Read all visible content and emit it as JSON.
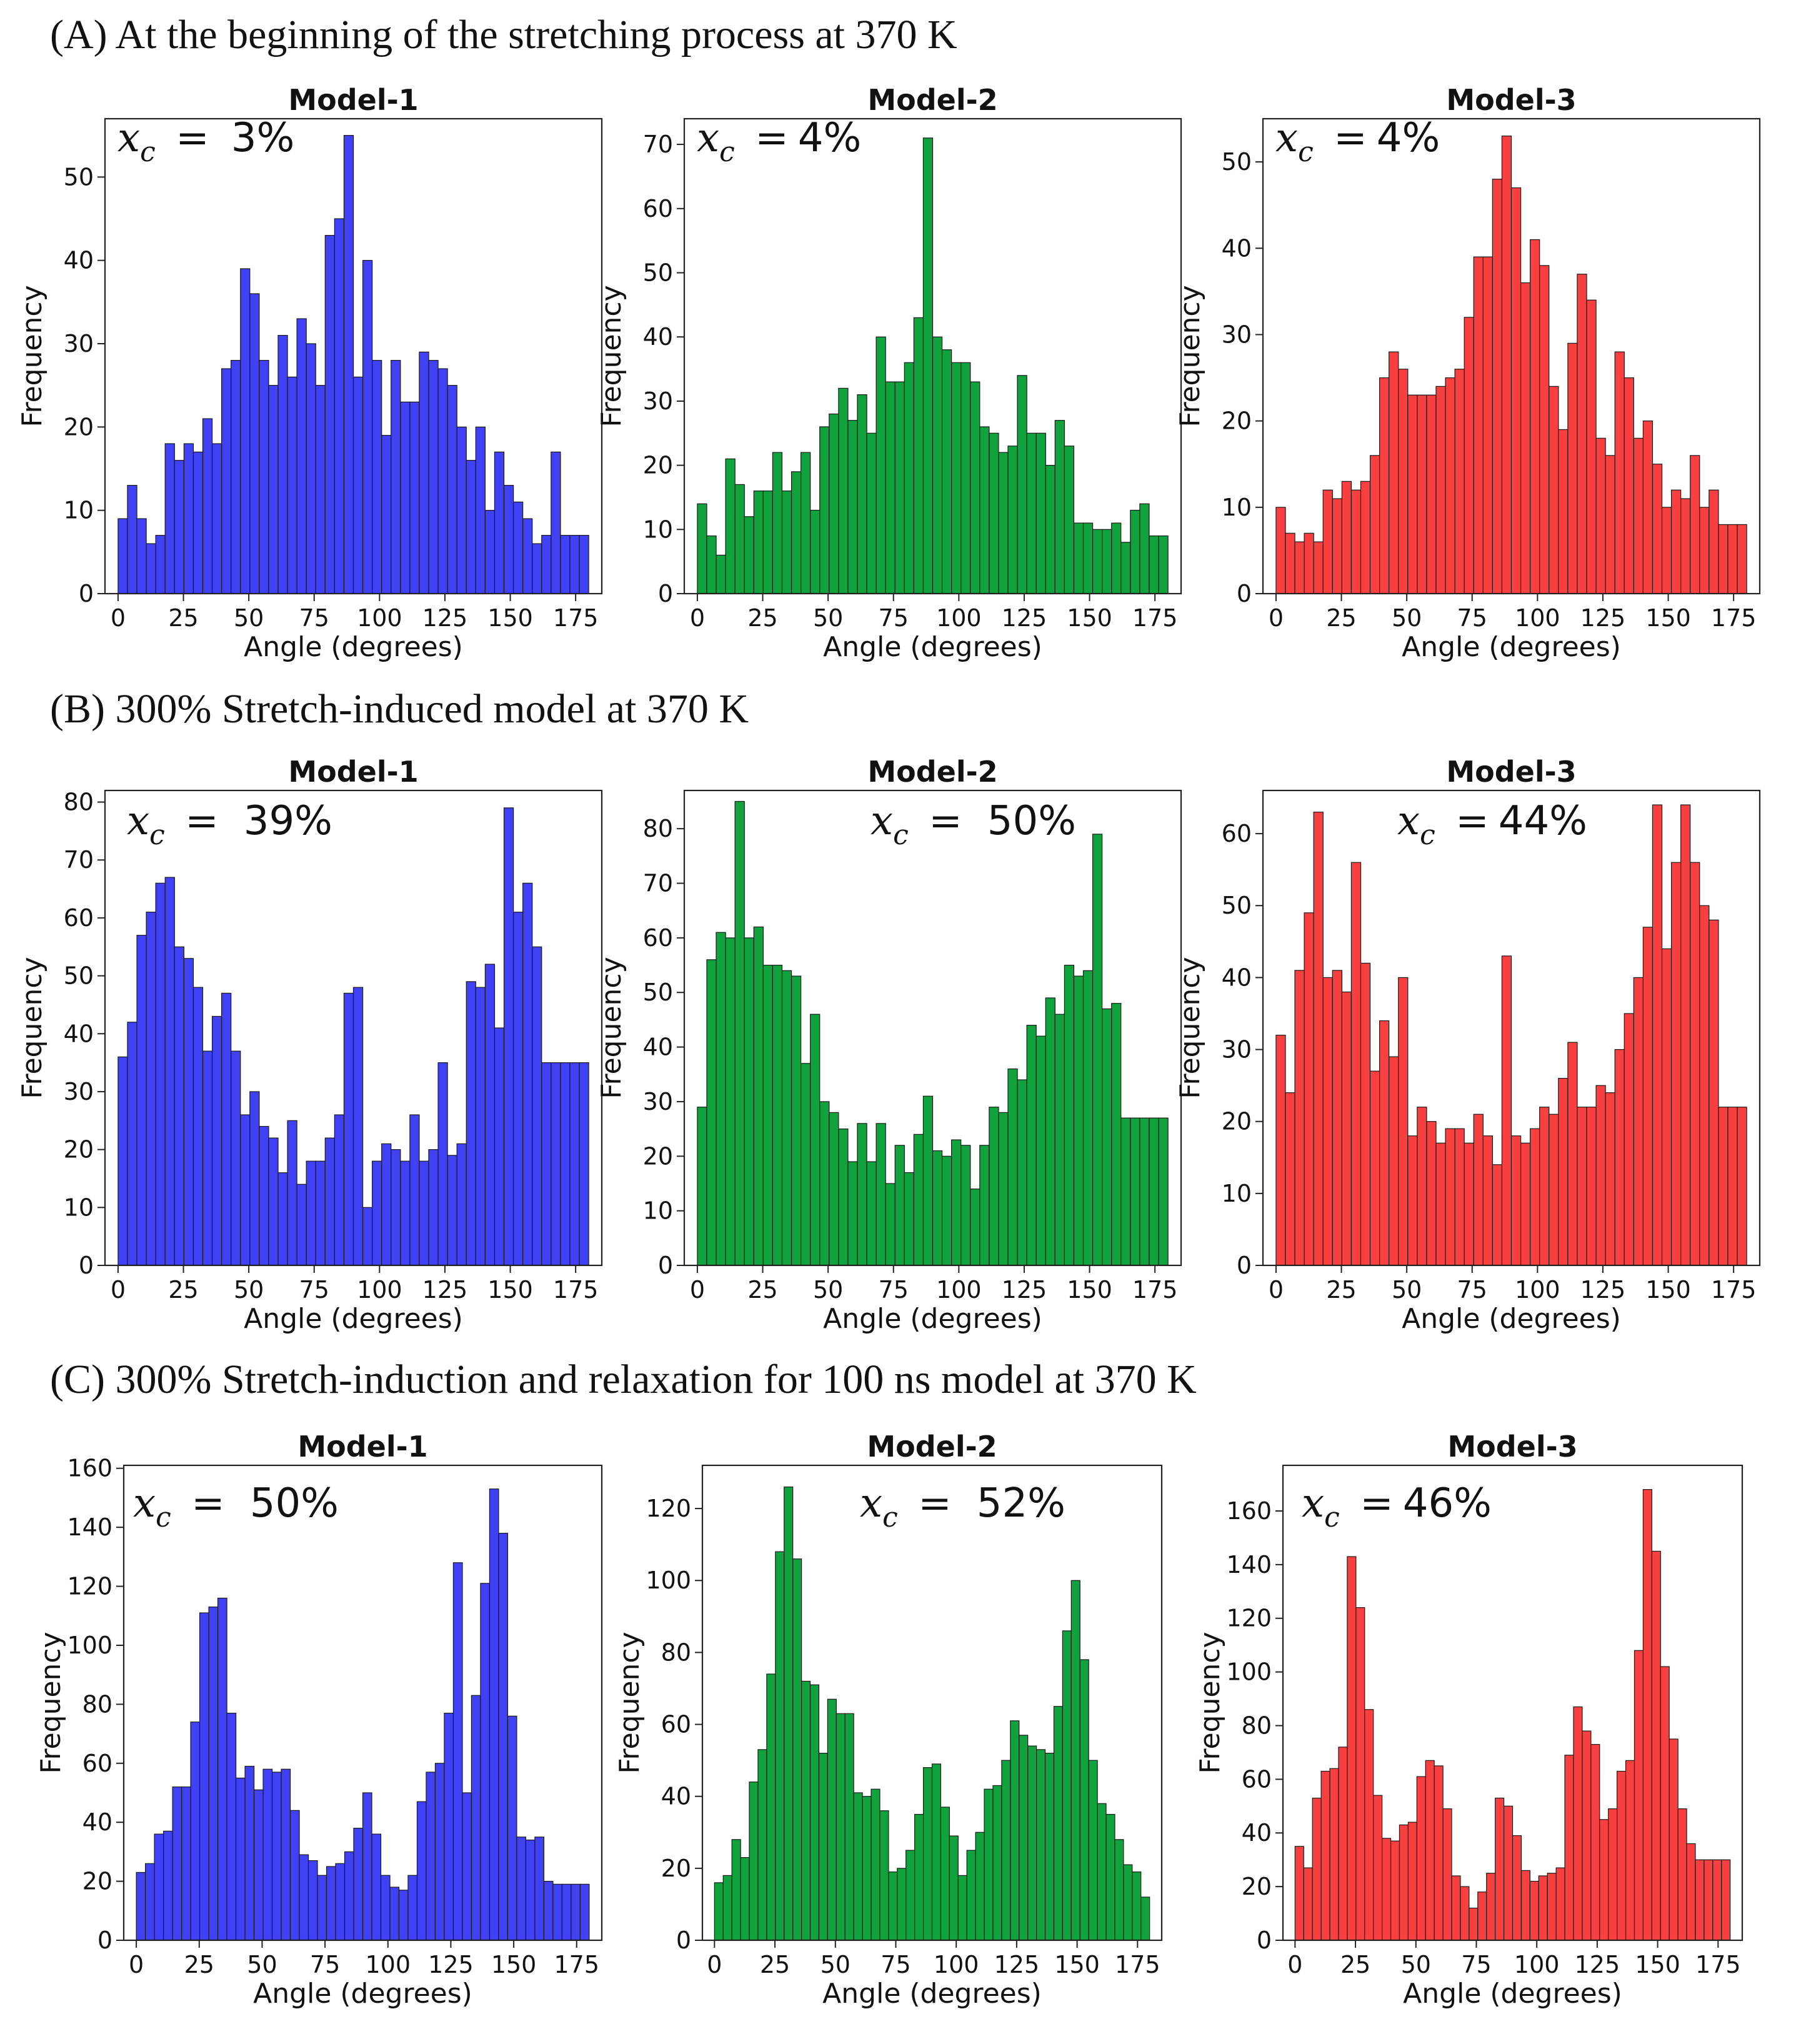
{
  "sections": [
    {
      "label": "(A) At the beginning of the stretching process at 370 K"
    },
    {
      "label": "(B) 300% Stretch-induced model at 370 K"
    },
    {
      "label": "(C) 300% Stretch-induction and relaxation for 100 ns model at 370 K"
    }
  ],
  "colors": {
    "model1": "#4040f4",
    "model2": "#10a23c",
    "model3": "#f84040",
    "edge": "#1a1a1a"
  },
  "chart_data": [
    {
      "type": "bar",
      "section": "A",
      "title": "Model-1",
      "annotation_var": "x_c =",
      "annotation_value": "3%",
      "xlabel": "Angle (degrees)",
      "ylabel": "Frequency",
      "bin_width": 3.6,
      "xlim": [
        -5,
        185
      ],
      "ylim": [
        0,
        57
      ],
      "yticks": [
        0,
        10,
        20,
        30,
        40,
        50
      ],
      "xticks": [
        0,
        25,
        50,
        75,
        100,
        125,
        150,
        175
      ],
      "color": "model1",
      "values": [
        9,
        13,
        9,
        6,
        7,
        18,
        16,
        18,
        17,
        21,
        18,
        27,
        28,
        39,
        36,
        28,
        25,
        31,
        26,
        33,
        30,
        25,
        43,
        45,
        55,
        26,
        40,
        28,
        19,
        28,
        23,
        23,
        29,
        28,
        27,
        25,
        20,
        16,
        20,
        10,
        17,
        13,
        11,
        9,
        6,
        7,
        17,
        7,
        7,
        7
      ]
    },
    {
      "type": "bar",
      "section": "A",
      "title": "Model-2",
      "annotation_var": "x_c =",
      "annotation_value": "4%",
      "xlabel": "Angle (degrees)",
      "ylabel": "Frequency",
      "bin_width": 3.6,
      "xlim": [
        -5,
        185
      ],
      "ylim": [
        0,
        74
      ],
      "yticks": [
        0,
        10,
        20,
        30,
        40,
        50,
        60,
        70
      ],
      "xticks": [
        0,
        25,
        50,
        75,
        100,
        125,
        150,
        175
      ],
      "color": "model2",
      "values": [
        14,
        9,
        6,
        21,
        17,
        12,
        16,
        16,
        22,
        16,
        19,
        22,
        13,
        26,
        28,
        32,
        27,
        31,
        25,
        40,
        33,
        33,
        36,
        43,
        71,
        40,
        38,
        36,
        36,
        33,
        26,
        25,
        22,
        23,
        34,
        25,
        25,
        20,
        27,
        23,
        11,
        11,
        10,
        10,
        11,
        8,
        13,
        14,
        9,
        9
      ]
    },
    {
      "type": "bar",
      "section": "A",
      "title": "Model-3",
      "annotation_var": "x_c =",
      "annotation_value": "4%",
      "xlabel": "Angle (degrees)",
      "ylabel": "Frequency",
      "bin_width": 3.6,
      "xlim": [
        -5,
        185
      ],
      "ylim": [
        0,
        55
      ],
      "yticks": [
        0,
        10,
        20,
        30,
        40,
        50
      ],
      "xticks": [
        0,
        25,
        50,
        75,
        100,
        125,
        150,
        175
      ],
      "color": "model3",
      "values": [
        10,
        7,
        6,
        7,
        6,
        12,
        11,
        13,
        12,
        13,
        16,
        25,
        28,
        26,
        23,
        23,
        23,
        24,
        25,
        26,
        32,
        39,
        39,
        48,
        53,
        47,
        36,
        41,
        38,
        24,
        19,
        29,
        37,
        34,
        18,
        16,
        28,
        25,
        18,
        20,
        15,
        10,
        12,
        11,
        16,
        10,
        12,
        8,
        8,
        8
      ]
    },
    {
      "type": "bar",
      "section": "B",
      "title": "Model-1",
      "annotation_var": "x_c =",
      "annotation_value": "39%",
      "xlabel": "Angle (degrees)",
      "ylabel": "Frequency",
      "bin_width": 3.6,
      "xlim": [
        -5,
        185
      ],
      "ylim": [
        0,
        82
      ],
      "yticks": [
        0,
        10,
        20,
        30,
        40,
        50,
        60,
        70,
        80
      ],
      "xticks": [
        0,
        25,
        50,
        75,
        100,
        125,
        150,
        175
      ],
      "color": "model1",
      "values": [
        36,
        42,
        57,
        61,
        66,
        67,
        55,
        53,
        48,
        37,
        43,
        47,
        37,
        26,
        30,
        24,
        22,
        16,
        25,
        14,
        18,
        18,
        22,
        26,
        47,
        48,
        10,
        18,
        21,
        20,
        18,
        26,
        18,
        20,
        35,
        19,
        21,
        49,
        48,
        52,
        41,
        79,
        61,
        66,
        55,
        35,
        35,
        35,
        35,
        35
      ]
    },
    {
      "type": "bar",
      "section": "B",
      "title": "Model-2",
      "annotation_var": "x_c =",
      "annotation_value": "50%",
      "xlabel": "Angle (degrees)",
      "ylabel": "Frequency",
      "bin_width": 3.6,
      "xlim": [
        -5,
        185
      ],
      "ylim": [
        0,
        87
      ],
      "yticks": [
        0,
        10,
        20,
        30,
        40,
        50,
        60,
        70,
        80
      ],
      "xticks": [
        0,
        25,
        50,
        75,
        100,
        125,
        150,
        175
      ],
      "color": "model2",
      "values": [
        29,
        56,
        61,
        60,
        85,
        60,
        62,
        55,
        55,
        54,
        53,
        37,
        46,
        30,
        28,
        25,
        19,
        26,
        19,
        26,
        15,
        22,
        17,
        24,
        31,
        21,
        20,
        23,
        22,
        14,
        22,
        29,
        28,
        36,
        34,
        44,
        42,
        49,
        46,
        55,
        53,
        54,
        79,
        47,
        48,
        27,
        27,
        27,
        27,
        27
      ]
    },
    {
      "type": "bar",
      "section": "B",
      "title": "Model-3",
      "annotation_var": "x_c =",
      "annotation_value": "44%",
      "xlabel": "Angle (degrees)",
      "ylabel": "Frequency",
      "bin_width": 3.6,
      "xlim": [
        -5,
        185
      ],
      "ylim": [
        0,
        66
      ],
      "yticks": [
        0,
        10,
        20,
        30,
        40,
        50,
        60
      ],
      "xticks": [
        0,
        25,
        50,
        75,
        100,
        125,
        150,
        175
      ],
      "color": "model3",
      "values": [
        32,
        24,
        41,
        49,
        63,
        40,
        41,
        38,
        56,
        42,
        27,
        34,
        29,
        40,
        18,
        22,
        20,
        17,
        19,
        19,
        17,
        21,
        18,
        14,
        43,
        18,
        17,
        19,
        22,
        21,
        26,
        31,
        22,
        22,
        25,
        24,
        30,
        35,
        40,
        47,
        64,
        44,
        56,
        64,
        56,
        50,
        48,
        22,
        22,
        22
      ]
    },
    {
      "type": "bar",
      "section": "C",
      "title": "Model-1",
      "annotation_var": "x_c =",
      "annotation_value": "50%",
      "xlabel": "Angle (degrees)",
      "ylabel": "Frequency",
      "bin_width": 3.6,
      "xlim": [
        -5,
        185
      ],
      "ylim": [
        0,
        161
      ],
      "yticks": [
        0,
        20,
        40,
        60,
        80,
        100,
        120,
        140,
        160
      ],
      "xticks": [
        0,
        25,
        50,
        75,
        100,
        125,
        150,
        175
      ],
      "color": "model1",
      "values": [
        23,
        26,
        36,
        37,
        52,
        52,
        74,
        111,
        113,
        116,
        77,
        55,
        59,
        51,
        58,
        57,
        58,
        44,
        29,
        27,
        22,
        25,
        26,
        30,
        38,
        50,
        36,
        22,
        18,
        17,
        22,
        47,
        57,
        60,
        77,
        128,
        50,
        83,
        121,
        153,
        138,
        76,
        35,
        34,
        35,
        20,
        19,
        19,
        19,
        19
      ]
    },
    {
      "type": "bar",
      "section": "C",
      "title": "Model-2",
      "annotation_var": "x_c =",
      "annotation_value": "52%",
      "xlabel": "Angle (degrees)",
      "ylabel": "Frequency",
      "bin_width": 3.6,
      "xlim": [
        -5,
        185
      ],
      "ylim": [
        0,
        132
      ],
      "yticks": [
        0,
        20,
        40,
        60,
        80,
        100,
        120
      ],
      "xticks": [
        0,
        25,
        50,
        75,
        100,
        125,
        150,
        175
      ],
      "color": "model2",
      "values": [
        16,
        18,
        28,
        23,
        44,
        53,
        74,
        108,
        126,
        106,
        72,
        71,
        52,
        67,
        63,
        63,
        41,
        40,
        42,
        36,
        19,
        20,
        25,
        35,
        48,
        49,
        37,
        29,
        18,
        25,
        30,
        42,
        43,
        50,
        61,
        57,
        54,
        53,
        52,
        65,
        86,
        100,
        78,
        50,
        38,
        35,
        28,
        21,
        19,
        12
      ]
    },
    {
      "type": "bar",
      "section": "C",
      "title": "Model-3",
      "annotation_var": "x_c =",
      "annotation_value": "46%",
      "xlabel": "Angle (degrees)",
      "ylabel": "Frequency",
      "bin_width": 3.6,
      "xlim": [
        -5,
        185
      ],
      "ylim": [
        0,
        177
      ],
      "yticks": [
        0,
        20,
        40,
        60,
        80,
        100,
        120,
        140,
        160
      ],
      "xticks": [
        0,
        25,
        50,
        75,
        100,
        125,
        150,
        175
      ],
      "color": "model3",
      "values": [
        35,
        27,
        53,
        63,
        64,
        72,
        143,
        124,
        86,
        54,
        38,
        37,
        43,
        44,
        61,
        67,
        65,
        49,
        24,
        20,
        12,
        18,
        25,
        53,
        50,
        39,
        26,
        22,
        24,
        25,
        27,
        69,
        87,
        78,
        73,
        45,
        49,
        63,
        67,
        108,
        168,
        145,
        102,
        75,
        49,
        36,
        30,
        30,
        30,
        30
      ]
    }
  ]
}
